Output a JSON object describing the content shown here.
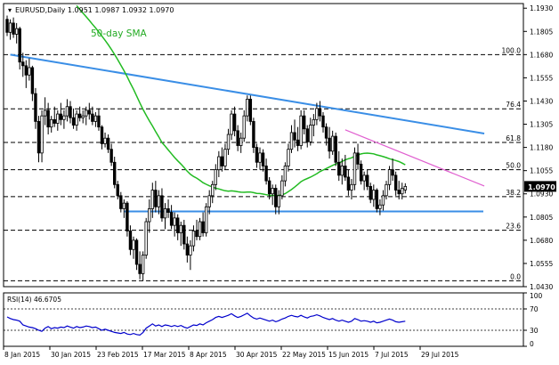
{
  "chart_data": {
    "type": "candlestick",
    "header": {
      "symbol": "EURUSD,Daily",
      "ohlc": "1.0951 1.0987 1.0932 1.0970"
    },
    "sma_label": "50-day SMA",
    "rsi_label": "RSI(14) 46.6705",
    "price_axis": {
      "min": 1.043,
      "max": 1.1955,
      "ticks": [
        "1.1930",
        "1.1805",
        "1.1680",
        "1.1555",
        "1.1430",
        "1.1305",
        "1.1180",
        "1.1055",
        "1.0930",
        "1.0805",
        "1.0680",
        "1.0555",
        "1.0430"
      ]
    },
    "current_price": "1.0970",
    "rsi_axis": {
      "min": 0,
      "max": 100,
      "ticks": [
        "100",
        "70",
        "30",
        "0"
      ],
      "levels": [
        70,
        30
      ]
    },
    "x_axis": {
      "labels": [
        "8 Jan 2015",
        "30 Jan 2015",
        "23 Feb 2015",
        "17 Mar 2015",
        "8 Apr 2015",
        "30 Apr 2015",
        "22 May 2015",
        "15 Jun 2015",
        "7 Jul 2015",
        "29 Jul 2015"
      ]
    },
    "fibonacci": [
      {
        "label": "100.0",
        "price": 1.168
      },
      {
        "label": "76.4",
        "price": 1.1388
      },
      {
        "label": "61.8",
        "price": 1.1207
      },
      {
        "label": "50.0",
        "price": 1.106
      },
      {
        "label": "38.2",
        "price": 1.0915
      },
      {
        "label": "23.6",
        "price": 1.0734
      },
      {
        "label": "0.0",
        "price": 1.0462
      }
    ],
    "horizontal_support": 1.0835,
    "trendlines": [
      {
        "name": "blue-resistance",
        "from": [
          1,
          1.168
        ],
        "to": [
          151,
          1.1255
        ],
        "color": "#3a8ee6"
      },
      {
        "name": "magenta-resistance",
        "from": [
          107,
          1.1275
        ],
        "to": [
          151,
          1.0972
        ],
        "color": "#e060d0"
      }
    ],
    "candles": [
      {
        "o": 1.187,
        "h": 1.189,
        "l": 1.178,
        "c": 1.18
      },
      {
        "o": 1.18,
        "h": 1.187,
        "l": 1.176,
        "c": 1.185
      },
      {
        "o": 1.185,
        "h": 1.188,
        "l": 1.177,
        "c": 1.179
      },
      {
        "o": 1.179,
        "h": 1.185,
        "l": 1.174,
        "c": 1.182
      },
      {
        "o": 1.182,
        "h": 1.183,
        "l": 1.16,
        "c": 1.164
      },
      {
        "o": 1.164,
        "h": 1.169,
        "l": 1.156,
        "c": 1.162
      },
      {
        "o": 1.162,
        "h": 1.165,
        "l": 1.15,
        "c": 1.157
      },
      {
        "o": 1.157,
        "h": 1.166,
        "l": 1.154,
        "c": 1.161
      },
      {
        "o": 1.161,
        "h": 1.162,
        "l": 1.143,
        "c": 1.147
      },
      {
        "o": 1.147,
        "h": 1.15,
        "l": 1.128,
        "c": 1.132
      },
      {
        "o": 1.132,
        "h": 1.135,
        "l": 1.11,
        "c": 1.115
      },
      {
        "o": 1.115,
        "h": 1.138,
        "l": 1.11,
        "c": 1.135
      },
      {
        "o": 1.135,
        "h": 1.145,
        "l": 1.13,
        "c": 1.138
      },
      {
        "o": 1.138,
        "h": 1.142,
        "l": 1.125,
        "c": 1.129
      },
      {
        "o": 1.129,
        "h": 1.135,
        "l": 1.126,
        "c": 1.133
      },
      {
        "o": 1.133,
        "h": 1.14,
        "l": 1.129,
        "c": 1.131
      },
      {
        "o": 1.131,
        "h": 1.138,
        "l": 1.127,
        "c": 1.136
      },
      {
        "o": 1.136,
        "h": 1.142,
        "l": 1.13,
        "c": 1.133
      },
      {
        "o": 1.133,
        "h": 1.138,
        "l": 1.128,
        "c": 1.135
      },
      {
        "o": 1.135,
        "h": 1.144,
        "l": 1.132,
        "c": 1.14
      },
      {
        "o": 1.14,
        "h": 1.143,
        "l": 1.131,
        "c": 1.134
      },
      {
        "o": 1.134,
        "h": 1.139,
        "l": 1.128,
        "c": 1.13
      },
      {
        "o": 1.13,
        "h": 1.138,
        "l": 1.127,
        "c": 1.136
      },
      {
        "o": 1.136,
        "h": 1.14,
        "l": 1.132,
        "c": 1.134
      },
      {
        "o": 1.134,
        "h": 1.138,
        "l": 1.131,
        "c": 1.135
      },
      {
        "o": 1.135,
        "h": 1.14,
        "l": 1.13,
        "c": 1.138
      },
      {
        "o": 1.138,
        "h": 1.142,
        "l": 1.133,
        "c": 1.136
      },
      {
        "o": 1.136,
        "h": 1.14,
        "l": 1.13,
        "c": 1.132
      },
      {
        "o": 1.132,
        "h": 1.137,
        "l": 1.129,
        "c": 1.135
      },
      {
        "o": 1.135,
        "h": 1.139,
        "l": 1.127,
        "c": 1.129
      },
      {
        "o": 1.129,
        "h": 1.13,
        "l": 1.117,
        "c": 1.12
      },
      {
        "o": 1.12,
        "h": 1.126,
        "l": 1.118,
        "c": 1.123
      },
      {
        "o": 1.123,
        "h": 1.125,
        "l": 1.115,
        "c": 1.117
      },
      {
        "o": 1.117,
        "h": 1.12,
        "l": 1.108,
        "c": 1.11
      },
      {
        "o": 1.11,
        "h": 1.113,
        "l": 1.096,
        "c": 1.098
      },
      {
        "o": 1.098,
        "h": 1.1,
        "l": 1.09,
        "c": 1.092
      },
      {
        "o": 1.092,
        "h": 1.094,
        "l": 1.083,
        "c": 1.085
      },
      {
        "o": 1.085,
        "h": 1.09,
        "l": 1.08,
        "c": 1.088
      },
      {
        "o": 1.088,
        "h": 1.089,
        "l": 1.07,
        "c": 1.073
      },
      {
        "o": 1.073,
        "h": 1.076,
        "l": 1.06,
        "c": 1.063
      },
      {
        "o": 1.063,
        "h": 1.07,
        "l": 1.058,
        "c": 1.068
      },
      {
        "o": 1.068,
        "h": 1.069,
        "l": 1.052,
        "c": 1.055
      },
      {
        "o": 1.055,
        "h": 1.062,
        "l": 1.047,
        "c": 1.05
      },
      {
        "o": 1.05,
        "h": 1.062,
        "l": 1.0462,
        "c": 1.06
      },
      {
        "o": 1.06,
        "h": 1.08,
        "l": 1.058,
        "c": 1.078
      },
      {
        "o": 1.078,
        "h": 1.09,
        "l": 1.072,
        "c": 1.085
      },
      {
        "o": 1.085,
        "h": 1.099,
        "l": 1.08,
        "c": 1.095
      },
      {
        "o": 1.095,
        "h": 1.1,
        "l": 1.083,
        "c": 1.086
      },
      {
        "o": 1.086,
        "h": 1.095,
        "l": 1.082,
        "c": 1.092
      },
      {
        "o": 1.092,
        "h": 1.096,
        "l": 1.078,
        "c": 1.08
      },
      {
        "o": 1.08,
        "h": 1.088,
        "l": 1.074,
        "c": 1.085
      },
      {
        "o": 1.085,
        "h": 1.09,
        "l": 1.08,
        "c": 1.083
      },
      {
        "o": 1.083,
        "h": 1.087,
        "l": 1.074,
        "c": 1.076
      },
      {
        "o": 1.076,
        "h": 1.083,
        "l": 1.07,
        "c": 1.08
      },
      {
        "o": 1.08,
        "h": 1.082,
        "l": 1.068,
        "c": 1.072
      },
      {
        "o": 1.072,
        "h": 1.078,
        "l": 1.065,
        "c": 1.076
      },
      {
        "o": 1.076,
        "h": 1.079,
        "l": 1.063,
        "c": 1.066
      },
      {
        "o": 1.066,
        "h": 1.07,
        "l": 1.056,
        "c": 1.06
      },
      {
        "o": 1.06,
        "h": 1.068,
        "l": 1.052,
        "c": 1.065
      },
      {
        "o": 1.065,
        "h": 1.076,
        "l": 1.062,
        "c": 1.073
      },
      {
        "o": 1.073,
        "h": 1.079,
        "l": 1.068,
        "c": 1.07
      },
      {
        "o": 1.07,
        "h": 1.08,
        "l": 1.068,
        "c": 1.078
      },
      {
        "o": 1.078,
        "h": 1.083,
        "l": 1.07,
        "c": 1.072
      },
      {
        "o": 1.072,
        "h": 1.088,
        "l": 1.07,
        "c": 1.086
      },
      {
        "o": 1.086,
        "h": 1.095,
        "l": 1.082,
        "c": 1.092
      },
      {
        "o": 1.092,
        "h": 1.1,
        "l": 1.088,
        "c": 1.098
      },
      {
        "o": 1.098,
        "h": 1.109,
        "l": 1.095,
        "c": 1.106
      },
      {
        "o": 1.106,
        "h": 1.116,
        "l": 1.102,
        "c": 1.113
      },
      {
        "o": 1.113,
        "h": 1.118,
        "l": 1.105,
        "c": 1.108
      },
      {
        "o": 1.108,
        "h": 1.12,
        "l": 1.106,
        "c": 1.117
      },
      {
        "o": 1.117,
        "h": 1.128,
        "l": 1.114,
        "c": 1.125
      },
      {
        "o": 1.125,
        "h": 1.138,
        "l": 1.122,
        "c": 1.136
      },
      {
        "o": 1.136,
        "h": 1.14,
        "l": 1.124,
        "c": 1.127
      },
      {
        "o": 1.127,
        "h": 1.13,
        "l": 1.116,
        "c": 1.119
      },
      {
        "o": 1.119,
        "h": 1.126,
        "l": 1.115,
        "c": 1.123
      },
      {
        "o": 1.123,
        "h": 1.138,
        "l": 1.121,
        "c": 1.135
      },
      {
        "o": 1.135,
        "h": 1.146,
        "l": 1.132,
        "c": 1.144
      },
      {
        "o": 1.144,
        "h": 1.146,
        "l": 1.13,
        "c": 1.132
      },
      {
        "o": 1.132,
        "h": 1.134,
        "l": 1.115,
        "c": 1.118
      },
      {
        "o": 1.118,
        "h": 1.12,
        "l": 1.107,
        "c": 1.11
      },
      {
        "o": 1.11,
        "h": 1.118,
        "l": 1.106,
        "c": 1.115
      },
      {
        "o": 1.115,
        "h": 1.117,
        "l": 1.105,
        "c": 1.108
      },
      {
        "o": 1.108,
        "h": 1.112,
        "l": 1.098,
        "c": 1.1
      },
      {
        "o": 1.1,
        "h": 1.102,
        "l": 1.09,
        "c": 1.093
      },
      {
        "o": 1.093,
        "h": 1.098,
        "l": 1.087,
        "c": 1.096
      },
      {
        "o": 1.096,
        "h": 1.098,
        "l": 1.082,
        "c": 1.086
      },
      {
        "o": 1.086,
        "h": 1.095,
        "l": 1.082,
        "c": 1.092
      },
      {
        "o": 1.092,
        "h": 1.103,
        "l": 1.09,
        "c": 1.1
      },
      {
        "o": 1.1,
        "h": 1.11,
        "l": 1.097,
        "c": 1.108
      },
      {
        "o": 1.108,
        "h": 1.12,
        "l": 1.105,
        "c": 1.117
      },
      {
        "o": 1.117,
        "h": 1.13,
        "l": 1.115,
        "c": 1.126
      },
      {
        "o": 1.126,
        "h": 1.133,
        "l": 1.118,
        "c": 1.122
      },
      {
        "o": 1.122,
        "h": 1.129,
        "l": 1.116,
        "c": 1.119
      },
      {
        "o": 1.119,
        "h": 1.138,
        "l": 1.117,
        "c": 1.135
      },
      {
        "o": 1.135,
        "h": 1.138,
        "l": 1.125,
        "c": 1.128
      },
      {
        "o": 1.128,
        "h": 1.13,
        "l": 1.118,
        "c": 1.121
      },
      {
        "o": 1.121,
        "h": 1.134,
        "l": 1.119,
        "c": 1.13
      },
      {
        "o": 1.13,
        "h": 1.136,
        "l": 1.124,
        "c": 1.133
      },
      {
        "o": 1.133,
        "h": 1.142,
        "l": 1.13,
        "c": 1.139
      },
      {
        "o": 1.139,
        "h": 1.143,
        "l": 1.132,
        "c": 1.135
      },
      {
        "o": 1.135,
        "h": 1.137,
        "l": 1.126,
        "c": 1.129
      },
      {
        "o": 1.129,
        "h": 1.131,
        "l": 1.119,
        "c": 1.123
      },
      {
        "o": 1.123,
        "h": 1.129,
        "l": 1.112,
        "c": 1.116
      },
      {
        "o": 1.116,
        "h": 1.127,
        "l": 1.114,
        "c": 1.124
      },
      {
        "o": 1.124,
        "h": 1.126,
        "l": 1.108,
        "c": 1.11
      },
      {
        "o": 1.11,
        "h": 1.116,
        "l": 1.1,
        "c": 1.103
      },
      {
        "o": 1.103,
        "h": 1.112,
        "l": 1.098,
        "c": 1.108
      },
      {
        "o": 1.108,
        "h": 1.114,
        "l": 1.1,
        "c": 1.102
      },
      {
        "o": 1.102,
        "h": 1.106,
        "l": 1.092,
        "c": 1.095
      },
      {
        "o": 1.095,
        "h": 1.101,
        "l": 1.09,
        "c": 1.098
      },
      {
        "o": 1.098,
        "h": 1.118,
        "l": 1.095,
        "c": 1.115
      },
      {
        "o": 1.115,
        "h": 1.12,
        "l": 1.106,
        "c": 1.109
      },
      {
        "o": 1.109,
        "h": 1.111,
        "l": 1.098,
        "c": 1.1
      },
      {
        "o": 1.1,
        "h": 1.105,
        "l": 1.095,
        "c": 1.103
      },
      {
        "o": 1.103,
        "h": 1.106,
        "l": 1.095,
        "c": 1.097
      },
      {
        "o": 1.097,
        "h": 1.099,
        "l": 1.088,
        "c": 1.09
      },
      {
        "o": 1.09,
        "h": 1.098,
        "l": 1.086,
        "c": 1.095
      },
      {
        "o": 1.095,
        "h": 1.096,
        "l": 1.083,
        "c": 1.085
      },
      {
        "o": 1.085,
        "h": 1.09,
        "l": 1.0815,
        "c": 1.087
      },
      {
        "o": 1.087,
        "h": 1.095,
        "l": 1.084,
        "c": 1.092
      },
      {
        "o": 1.092,
        "h": 1.1,
        "l": 1.09,
        "c": 1.098
      },
      {
        "o": 1.098,
        "h": 1.108,
        "l": 1.095,
        "c": 1.106
      },
      {
        "o": 1.106,
        "h": 1.112,
        "l": 1.1,
        "c": 1.103
      },
      {
        "o": 1.103,
        "h": 1.105,
        "l": 1.092,
        "c": 1.095
      },
      {
        "o": 1.095,
        "h": 1.1,
        "l": 1.09,
        "c": 1.093
      },
      {
        "o": 1.093,
        "h": 1.099,
        "l": 1.09,
        "c": 1.096
      },
      {
        "o": 1.0951,
        "h": 1.0987,
        "l": 1.0932,
        "c": 1.097
      }
    ],
    "rsi_values": [
      55,
      52,
      50,
      49,
      47,
      40,
      38,
      36,
      35,
      33,
      30,
      28,
      34,
      37,
      33,
      35,
      34,
      36,
      35,
      38,
      36,
      34,
      37,
      35,
      36,
      38,
      37,
      35,
      36,
      33,
      30,
      32,
      30,
      28,
      26,
      25,
      24,
      26,
      23,
      22,
      24,
      22,
      21,
      26,
      34,
      38,
      42,
      38,
      40,
      37,
      40,
      39,
      37,
      39,
      37,
      39,
      36,
      34,
      37,
      40,
      39,
      42,
      40,
      44,
      47,
      50,
      54,
      56,
      54,
      56,
      58,
      61,
      57,
      54,
      56,
      59,
      62,
      57,
      53,
      51,
      53,
      51,
      49,
      47,
      49,
      46,
      48,
      51,
      53,
      56,
      58,
      56,
      55,
      58,
      55,
      53,
      56,
      57,
      59,
      57,
      54,
      52,
      50,
      52,
      49,
      47,
      49,
      47,
      45,
      47,
      52,
      50,
      47,
      48,
      47,
      45,
      47,
      44,
      45,
      47,
      49,
      51,
      49,
      46,
      45,
      46,
      47
    ]
  }
}
